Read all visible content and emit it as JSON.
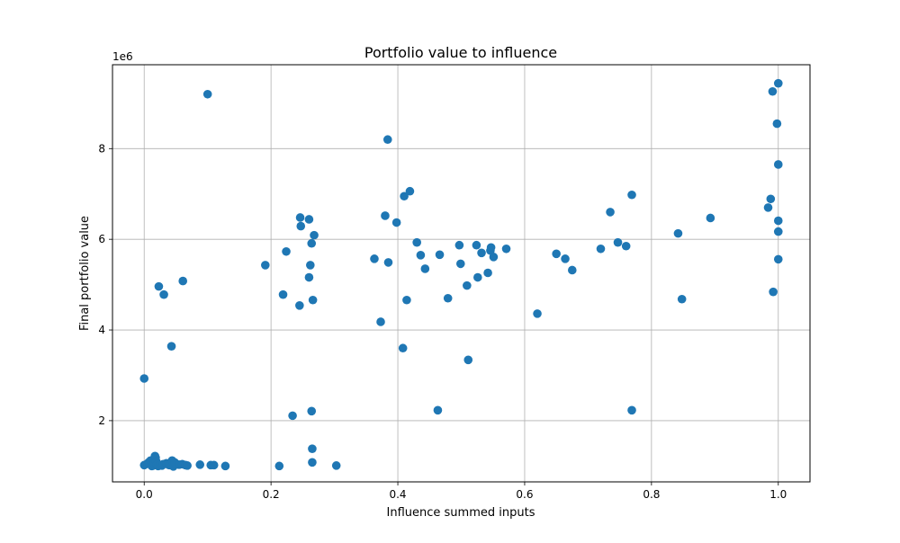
{
  "chart_data": {
    "type": "scatter",
    "title": "Portfolio value to influence",
    "xlabel": "Influence summed inputs",
    "ylabel": "Final portfolio value",
    "y_offset_label": "1e6",
    "xlim": [
      -0.05,
      1.05
    ],
    "ylim": [
      650000,
      9850000
    ],
    "x_ticks": [
      0.0,
      0.2,
      0.4,
      0.6,
      0.8,
      1.0
    ],
    "x_tick_labels": [
      "0.0",
      "0.2",
      "0.4",
      "0.6",
      "0.8",
      "1.0"
    ],
    "y_ticks": [
      2000000,
      4000000,
      6000000,
      8000000
    ],
    "y_tick_labels": [
      "2",
      "4",
      "6",
      "8"
    ],
    "grid": true,
    "marker_color": "#1f77b4",
    "points": [
      [
        0.0,
        2930000
      ],
      [
        0.0,
        1020000
      ],
      [
        0.005,
        1050000
      ],
      [
        0.007,
        1080000
      ],
      [
        0.01,
        1120000
      ],
      [
        0.012,
        1000000
      ],
      [
        0.014,
        1010000
      ],
      [
        0.015,
        1060000
      ],
      [
        0.016,
        1150000
      ],
      [
        0.017,
        1220000
      ],
      [
        0.018,
        1180000
      ],
      [
        0.019,
        1100000
      ],
      [
        0.02,
        1030000
      ],
      [
        0.022,
        1000000
      ],
      [
        0.025,
        1020000
      ],
      [
        0.028,
        1010000
      ],
      [
        0.03,
        1040000
      ],
      [
        0.035,
        1060000
      ],
      [
        0.038,
        1030000
      ],
      [
        0.04,
        1020000
      ],
      [
        0.044,
        1120000
      ],
      [
        0.046,
        990000
      ],
      [
        0.048,
        1080000
      ],
      [
        0.055,
        1030000
      ],
      [
        0.06,
        1040000
      ],
      [
        0.065,
        1020000
      ],
      [
        0.068,
        1010000
      ],
      [
        0.088,
        1030000
      ],
      [
        0.105,
        1020000
      ],
      [
        0.11,
        1020000
      ],
      [
        0.128,
        1000000
      ],
      [
        0.023,
        4960000
      ],
      [
        0.031,
        4780000
      ],
      [
        0.043,
        3640000
      ],
      [
        0.061,
        5080000
      ],
      [
        0.1,
        9200000
      ],
      [
        0.191,
        5430000
      ],
      [
        0.213,
        1000000
      ],
      [
        0.219,
        4780000
      ],
      [
        0.224,
        5730000
      ],
      [
        0.234,
        2110000
      ],
      [
        0.245,
        4540000
      ],
      [
        0.246,
        6480000
      ],
      [
        0.247,
        6290000
      ],
      [
        0.26,
        6440000
      ],
      [
        0.26,
        5160000
      ],
      [
        0.262,
        5430000
      ],
      [
        0.264,
        5910000
      ],
      [
        0.264,
        2210000
      ],
      [
        0.265,
        1380000
      ],
      [
        0.265,
        1080000
      ],
      [
        0.266,
        4660000
      ],
      [
        0.268,
        6090000
      ],
      [
        0.303,
        1010000
      ],
      [
        0.363,
        5570000
      ],
      [
        0.373,
        4180000
      ],
      [
        0.38,
        6520000
      ],
      [
        0.384,
        8200000
      ],
      [
        0.385,
        5490000
      ],
      [
        0.398,
        6370000
      ],
      [
        0.408,
        3600000
      ],
      [
        0.41,
        6950000
      ],
      [
        0.414,
        4660000
      ],
      [
        0.419,
        7060000
      ],
      [
        0.43,
        5930000
      ],
      [
        0.436,
        5650000
      ],
      [
        0.443,
        5350000
      ],
      [
        0.463,
        2230000
      ],
      [
        0.466,
        5660000
      ],
      [
        0.479,
        4700000
      ],
      [
        0.497,
        5870000
      ],
      [
        0.499,
        5460000
      ],
      [
        0.509,
        4980000
      ],
      [
        0.511,
        3340000
      ],
      [
        0.524,
        5870000
      ],
      [
        0.526,
        5160000
      ],
      [
        0.532,
        5700000
      ],
      [
        0.542,
        5260000
      ],
      [
        0.546,
        5750000
      ],
      [
        0.547,
        5820000
      ],
      [
        0.551,
        5610000
      ],
      [
        0.571,
        5790000
      ],
      [
        0.62,
        4360000
      ],
      [
        0.65,
        5680000
      ],
      [
        0.664,
        5570000
      ],
      [
        0.675,
        5320000
      ],
      [
        0.72,
        5790000
      ],
      [
        0.735,
        6600000
      ],
      [
        0.747,
        5930000
      ],
      [
        0.76,
        5850000
      ],
      [
        0.769,
        6980000
      ],
      [
        0.769,
        2230000
      ],
      [
        0.842,
        6130000
      ],
      [
        0.848,
        4680000
      ],
      [
        0.893,
        6470000
      ],
      [
        0.984,
        6700000
      ],
      [
        0.988,
        6890000
      ],
      [
        0.991,
        9260000
      ],
      [
        0.992,
        4840000
      ],
      [
        0.998,
        8550000
      ],
      [
        1.0,
        9440000
      ],
      [
        1.0,
        7650000
      ],
      [
        1.0,
        6410000
      ],
      [
        1.0,
        6170000
      ],
      [
        1.0,
        5560000
      ]
    ]
  }
}
